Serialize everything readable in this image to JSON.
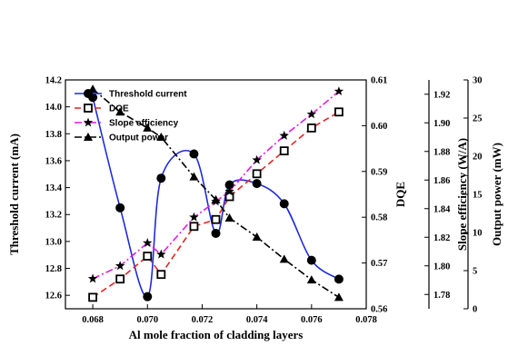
{
  "chart_data": {
    "type": "line",
    "x": [
      0.068,
      0.069,
      0.07,
      0.0705,
      0.0717,
      0.0725,
      0.073,
      0.074,
      0.075,
      0.076,
      0.077
    ],
    "xlabel": "Al mole fraction of cladding layers",
    "xlim": [
      0.067,
      0.078
    ],
    "xticks": [
      "0.068",
      "0.070",
      "0.072",
      "0.074",
      "0.076",
      "0.078"
    ],
    "xtick_values": [
      0.068,
      0.07,
      0.072,
      0.074,
      0.076,
      0.078
    ],
    "axes": [
      {
        "id": "threshold",
        "label": "Threshold current (mA)",
        "position": "left",
        "lim": [
          12.5,
          14.2
        ],
        "ticks": [
          "12.6",
          "12.8",
          "13.0",
          "13.2",
          "13.4",
          "13.6",
          "13.8",
          "14.0",
          "14.2"
        ],
        "tick_values": [
          12.6,
          12.8,
          13.0,
          13.2,
          13.4,
          13.6,
          13.8,
          14.0,
          14.2
        ]
      },
      {
        "id": "dqe",
        "label": "DQE",
        "position": "right-1",
        "lim": [
          0.56,
          0.61
        ],
        "ticks": [
          "0.56",
          "0.57",
          "0.58",
          "0.59",
          "0.60",
          "0.61"
        ],
        "tick_values": [
          0.56,
          0.57,
          0.58,
          0.59,
          0.6,
          0.61
        ]
      },
      {
        "id": "slope",
        "label": "Slope efficiency (W/A)",
        "position": "right-2",
        "lim": [
          1.77,
          1.93
        ],
        "ticks": [
          "1.78",
          "1.80",
          "1.82",
          "1.84",
          "1.86",
          "1.88",
          "1.90",
          "1.92"
        ],
        "tick_values": [
          1.78,
          1.8,
          1.82,
          1.84,
          1.86,
          1.88,
          1.9,
          1.92
        ]
      },
      {
        "id": "power",
        "label": "Output power (mW)",
        "position": "right-3",
        "lim": [
          0,
          30
        ],
        "ticks": [
          "0",
          "5",
          "10",
          "15",
          "20",
          "25",
          "30"
        ],
        "tick_values": [
          0,
          5,
          10,
          15,
          20,
          25,
          30
        ]
      }
    ],
    "series": [
      {
        "name": "Threshold current",
        "axis": "threshold",
        "color": "#1f2bdc",
        "line_style": "solid",
        "smooth": true,
        "marker": "filled-circle",
        "x": [
          0.068,
          0.069,
          0.07,
          0.0705,
          0.0717,
          0.0725,
          0.073,
          0.074,
          0.075,
          0.076,
          0.077
        ],
        "values": [
          14.07,
          13.25,
          12.59,
          13.47,
          13.65,
          13.06,
          13.42,
          13.43,
          13.28,
          12.86,
          12.72
        ]
      },
      {
        "name": "DQE",
        "axis": "dqe",
        "color": "#e8221d",
        "line_style": "dashed",
        "smooth": false,
        "marker": "open-square",
        "x": [
          0.068,
          0.069,
          0.07,
          0.0705,
          0.0717,
          0.0725,
          0.073,
          0.074,
          0.075,
          0.076,
          0.077
        ],
        "values": [
          0.5625,
          0.5665,
          0.5715,
          0.5675,
          0.578,
          0.5795,
          0.5845,
          0.5895,
          0.5945,
          0.5995,
          0.603
        ]
      },
      {
        "name": "Slope efficiency",
        "axis": "slope",
        "color": "#e21ae0",
        "line_style": "dashdot",
        "smooth": false,
        "marker": "star",
        "x": [
          0.068,
          0.069,
          0.07,
          0.0705,
          0.0717,
          0.0725,
          0.073,
          0.074,
          0.075,
          0.076,
          0.077
        ],
        "values": [
          1.791,
          1.8,
          1.816,
          1.808,
          1.834,
          1.845,
          1.852,
          1.874,
          1.891,
          1.906,
          1.922
        ]
      },
      {
        "name": "Output power",
        "axis": "power",
        "color": "#000000",
        "line_style": "dashdot",
        "smooth": false,
        "marker": "filled-triangle",
        "x": [
          0.068,
          0.069,
          0.07,
          0.0705,
          0.0717,
          0.0725,
          0.073,
          0.074,
          0.075,
          0.076,
          0.077
        ],
        "values": [
          28.8,
          25.8,
          23.7,
          22.5,
          17.3,
          14.3,
          11.9,
          9.4,
          6.5,
          3.8,
          1.5
        ]
      }
    ],
    "legend": "top-left, inside plot",
    "grid": false
  }
}
